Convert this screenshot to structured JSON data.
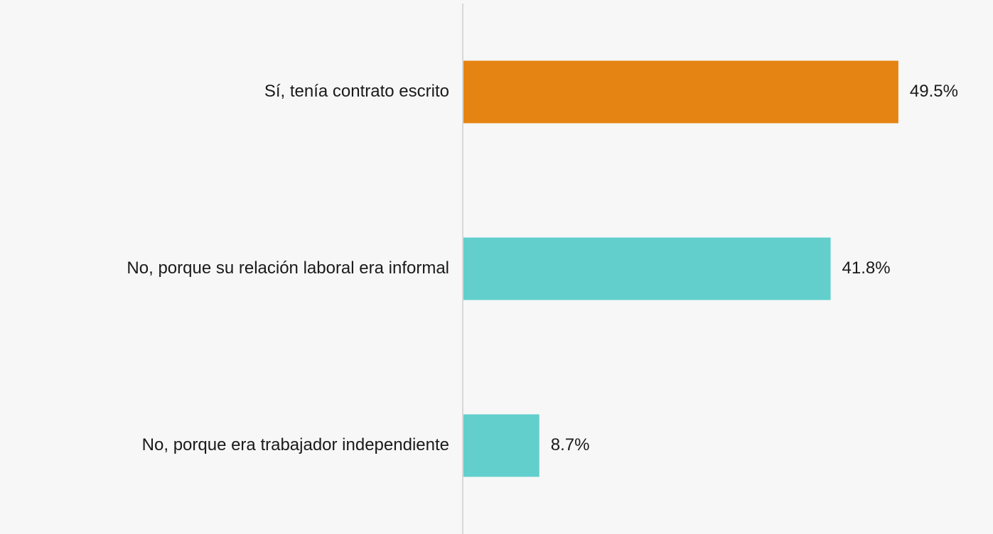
{
  "chart_data": {
    "type": "barh",
    "categories": [
      "Sí, tenía contrato escrito",
      "No, porque su relación laboral era informal",
      "No, porque era trabajador independiente"
    ],
    "values": [
      49.5,
      41.8,
      8.7
    ],
    "value_labels": [
      "49.5%",
      "41.8%",
      "8.7%"
    ],
    "colors": [
      "#e68413",
      "#62cfcd",
      "#62cfcd"
    ],
    "xlim": [
      0,
      55
    ]
  }
}
